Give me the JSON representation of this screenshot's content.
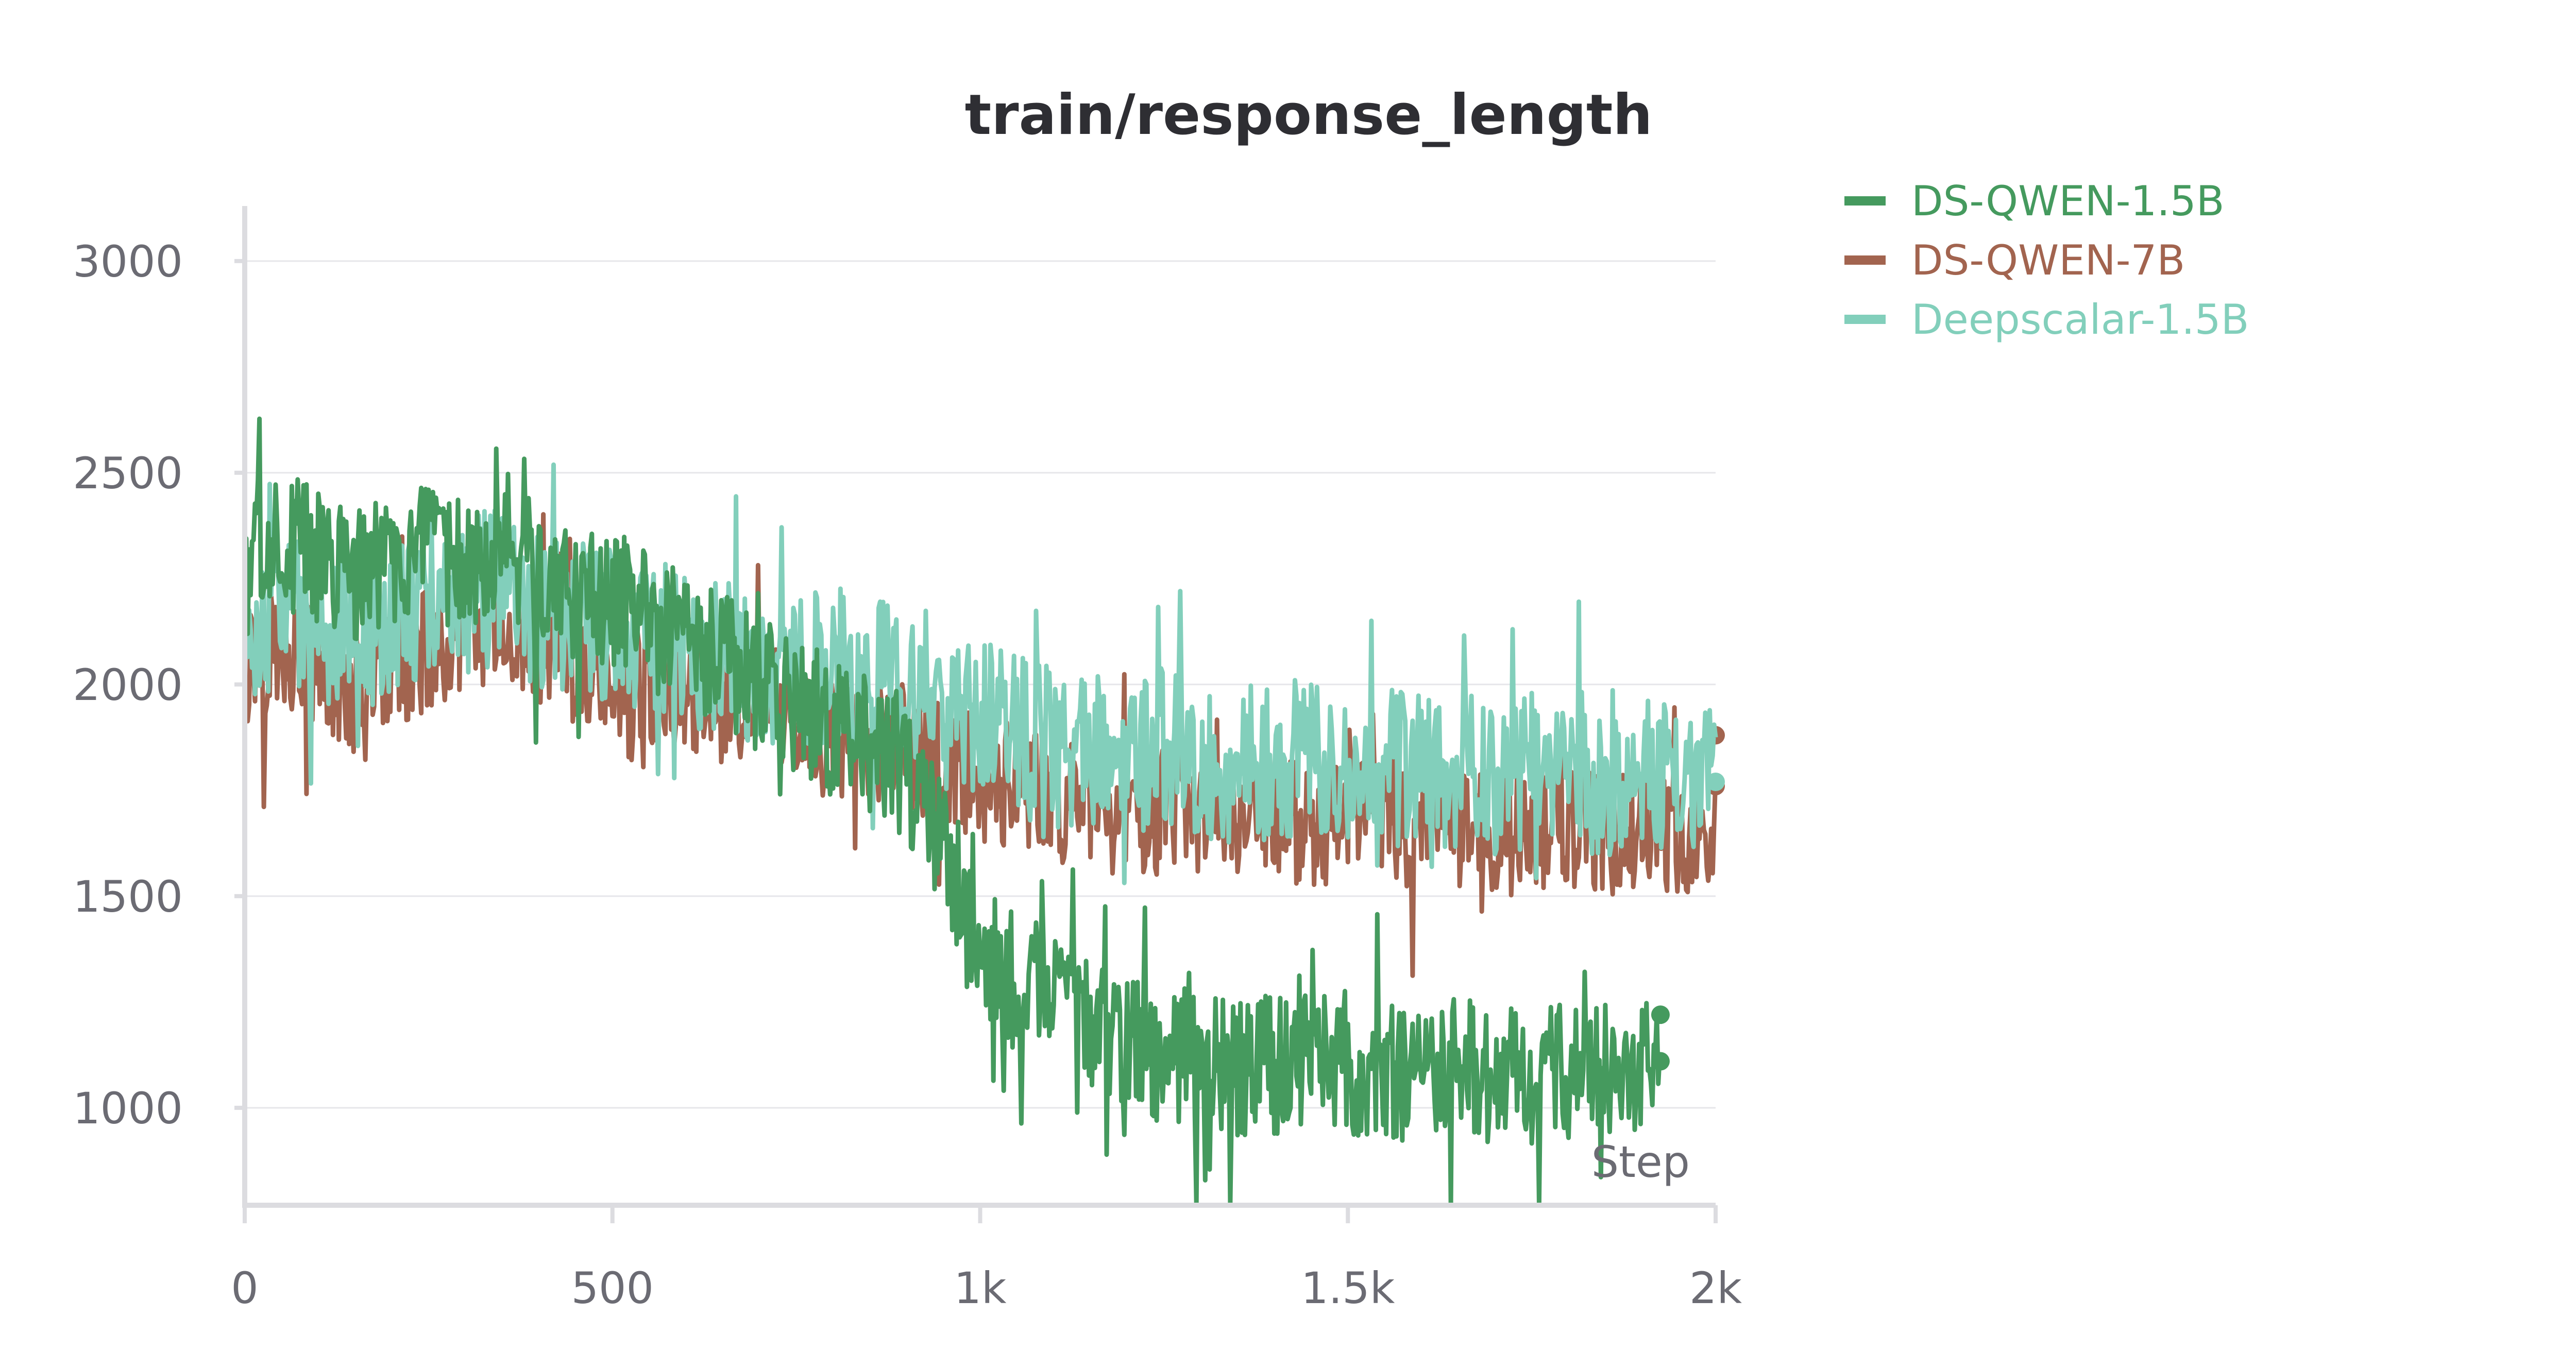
{
  "chart_data": {
    "type": "line",
    "title": "train/response_length",
    "xlabel": "Step",
    "ylabel": "",
    "xlim": [
      0,
      2000
    ],
    "ylim": [
      770,
      3130
    ],
    "xticks": [
      0,
      500,
      1000,
      1500,
      2000
    ],
    "xtick_labels": [
      "0",
      "500",
      "1k",
      "1.5k",
      "2k"
    ],
    "yticks": [
      1000,
      1500,
      2000,
      2500,
      3000
    ],
    "ytick_labels": [
      "1000",
      "1500",
      "2000",
      "2500",
      "3000"
    ],
    "grid": true,
    "legend_position": "top-right outside",
    "series": [
      {
        "name": "DS-QWEN-7B",
        "color": "#a2644f",
        "x": [
          0,
          50,
          100,
          150,
          200,
          250,
          300,
          350,
          400,
          450,
          500,
          550,
          600,
          650,
          700,
          750,
          800,
          850,
          900,
          950,
          1000,
          1050,
          1100,
          1150,
          1200,
          1250,
          1300,
          1350,
          1400,
          1450,
          1500,
          1550,
          1600,
          1650,
          1700,
          1750,
          1800,
          1850,
          1900,
          1950,
          2000
        ],
        "values": [
          2050,
          2100,
          2020,
          1980,
          2050,
          2080,
          2120,
          2150,
          2080,
          2050,
          1950,
          1990,
          2000,
          1950,
          1980,
          1900,
          1880,
          1870,
          1850,
          1800,
          1780,
          1760,
          1730,
          1720,
          1700,
          1700,
          1690,
          1680,
          1700,
          1660,
          1690,
          1680,
          1660,
          1700,
          1650,
          1660,
          1670,
          1650,
          1660,
          1650,
          1650
        ],
        "noise": 300,
        "end_markers": [
          1880,
          1760
        ]
      },
      {
        "name": "Deepscalar-1.5B",
        "color": "#82cfbb",
        "x": [
          0,
          50,
          100,
          150,
          200,
          250,
          300,
          350,
          400,
          450,
          500,
          550,
          600,
          650,
          700,
          750,
          800,
          850,
          900,
          950,
          1000,
          1050,
          1100,
          1150,
          1200,
          1250,
          1300,
          1350,
          1400,
          1450,
          1500,
          1550,
          1600,
          1650,
          1700,
          1750,
          1800,
          1850,
          1900,
          1950,
          2000
        ],
        "values": [
          2120,
          2200,
          2150,
          2100,
          2150,
          2220,
          2200,
          2250,
          2180,
          2150,
          2150,
          2120,
          2100,
          2050,
          2050,
          2050,
          2050,
          2030,
          2000,
          2000,
          1920,
          1880,
          1850,
          1850,
          1830,
          1850,
          1820,
          1800,
          1820,
          1830,
          1820,
          1800,
          1800,
          1800,
          1780,
          1800,
          1800,
          1780,
          1790,
          1780,
          1780
        ],
        "noise": 380,
        "end_markers": [
          1770
        ]
      },
      {
        "name": "DS-QWEN-1.5B",
        "color": "#459a5e",
        "x": [
          0,
          50,
          100,
          150,
          200,
          250,
          300,
          350,
          400,
          450,
          500,
          550,
          600,
          650,
          700,
          750,
          800,
          850,
          900,
          950,
          1000,
          1050,
          1100,
          1150,
          1200,
          1250,
          1300,
          1350,
          1400,
          1450,
          1500,
          1550,
          1600,
          1650,
          1700,
          1750,
          1800,
          1850,
          1900,
          1925
        ],
        "values": [
          2300,
          2350,
          2300,
          2250,
          2300,
          2300,
          2280,
          2350,
          2250,
          2200,
          2200,
          2150,
          2100,
          2050,
          2000,
          1950,
          1900,
          1850,
          1800,
          1600,
          1350,
          1300,
          1250,
          1200,
          1150,
          1130,
          1120,
          1100,
          1100,
          1100,
          1100,
          1090,
          1080,
          1100,
          1080,
          1080,
          1080,
          1080,
          1100,
          1150
        ],
        "noise": 330,
        "end_markers": [
          1220,
          1110
        ]
      }
    ],
    "legend": [
      {
        "name": "DS-QWEN-1.5B",
        "color": "#459a5e"
      },
      {
        "name": "DS-QWEN-7B",
        "color": "#a2644f"
      },
      {
        "name": "Deepscalar-1.5B",
        "color": "#82cfbb"
      }
    ]
  }
}
